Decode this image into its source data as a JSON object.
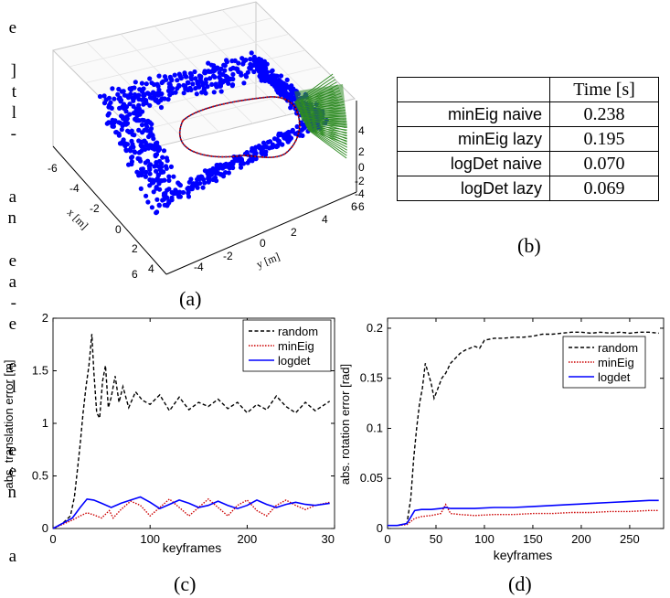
{
  "left_margin_fragments": [
    "e",
    "]",
    "t",
    "l",
    "-",
    "a",
    "n",
    "e",
    "a",
    "-",
    "e",
    "e",
    "l",
    "e",
    "e",
    "n",
    "a"
  ],
  "panel_a": {
    "caption": "(a)",
    "xlabel": "x [m]",
    "ylabel": "y [m]",
    "x_ticks": [
      "-6",
      "-4",
      "-2",
      "0",
      "2",
      "4",
      "6"
    ],
    "y_ticks": [
      "-4",
      "-2",
      "0",
      "2",
      "4",
      "6"
    ],
    "z_ticks": [
      "4",
      "2",
      "0",
      "-2",
      "-4",
      "-6"
    ],
    "colors": {
      "points": "#0000ff",
      "trajectory_a": "#cc0000",
      "trajectory_b": "#000066",
      "frustums": "#2e8b22"
    }
  },
  "panel_b": {
    "caption": "(b)",
    "header": [
      "",
      "Time [s]"
    ],
    "rows": [
      {
        "method": "minEig naive",
        "time": "0.238"
      },
      {
        "method": "minEig lazy",
        "time": "0.195"
      },
      {
        "method": "logDet naive",
        "time": "0.070"
      },
      {
        "method": "logDet lazy",
        "time": "0.069"
      }
    ]
  },
  "panel_c": {
    "caption": "(c)",
    "xlabel": "keyframes",
    "ylabel": "abs. translation error [m]",
    "x_ticks": [
      "0",
      "100",
      "200",
      "30"
    ],
    "y_ticks": [
      "0",
      "0.5",
      "1",
      "1.5",
      "2"
    ],
    "legend": [
      "random",
      "minEig",
      "logdet"
    ]
  },
  "panel_d": {
    "caption": "(d)",
    "xlabel": "keyframes",
    "ylabel": "abs. rotation error [rad]",
    "x_ticks": [
      "0",
      "50",
      "100",
      "150",
      "200",
      "250"
    ],
    "y_ticks": [
      "0",
      "0.05",
      "0.1",
      "0.15",
      "0.2"
    ],
    "legend": [
      "random",
      "minEig",
      "logdet"
    ]
  },
  "chart_data": [
    {
      "type": "line",
      "xlabel": "keyframes",
      "ylabel": "abs. translation error [m]",
      "xlim": [
        0,
        290
      ],
      "ylim": [
        0,
        2
      ],
      "grid": false,
      "legend_position": "top-right",
      "series": [
        {
          "name": "random",
          "style": "dashed",
          "color": "#000000",
          "x": [
            0,
            10,
            18,
            22,
            25,
            28,
            31,
            34,
            37,
            40,
            42,
            45,
            48,
            51,
            54,
            57,
            60,
            64,
            68,
            72,
            78,
            85,
            92,
            100,
            110,
            120,
            130,
            140,
            150,
            160,
            170,
            180,
            190,
            200,
            210,
            220,
            230,
            240,
            250,
            260,
            270,
            280,
            285
          ],
          "y": [
            0,
            0.05,
            0.12,
            0.3,
            0.55,
            0.8,
            1.1,
            1.35,
            1.55,
            1.85,
            1.5,
            1.1,
            1.05,
            1.4,
            1.55,
            1.15,
            1.25,
            1.45,
            1.2,
            1.35,
            1.15,
            1.3,
            1.22,
            1.18,
            1.27,
            1.12,
            1.25,
            1.13,
            1.2,
            1.16,
            1.23,
            1.14,
            1.2,
            1.1,
            1.18,
            1.13,
            1.26,
            1.16,
            1.1,
            1.2,
            1.12,
            1.18,
            1.21
          ]
        },
        {
          "name": "minEig",
          "style": "dotted",
          "color": "#cc0000",
          "x": [
            0,
            10,
            20,
            28,
            35,
            42,
            50,
            58,
            62,
            70,
            80,
            90,
            100,
            110,
            120,
            130,
            140,
            150,
            160,
            170,
            180,
            190,
            200,
            210,
            220,
            230,
            240,
            250,
            260,
            270,
            285
          ],
          "y": [
            0,
            0.04,
            0.08,
            0.12,
            0.15,
            0.13,
            0.1,
            0.17,
            0.1,
            0.18,
            0.26,
            0.22,
            0.12,
            0.2,
            0.28,
            0.2,
            0.12,
            0.2,
            0.28,
            0.2,
            0.12,
            0.22,
            0.27,
            0.17,
            0.12,
            0.22,
            0.27,
            0.22,
            0.18,
            0.22,
            0.25
          ]
        },
        {
          "name": "logdet",
          "style": "solid",
          "color": "#0000ff",
          "x": [
            0,
            10,
            20,
            28,
            35,
            42,
            50,
            60,
            70,
            80,
            90,
            100,
            110,
            120,
            130,
            140,
            150,
            160,
            170,
            180,
            190,
            200,
            210,
            220,
            230,
            240,
            250,
            260,
            270,
            285
          ],
          "y": [
            0,
            0.05,
            0.1,
            0.2,
            0.28,
            0.27,
            0.24,
            0.2,
            0.24,
            0.27,
            0.3,
            0.25,
            0.19,
            0.23,
            0.27,
            0.24,
            0.2,
            0.22,
            0.26,
            0.22,
            0.19,
            0.22,
            0.27,
            0.23,
            0.2,
            0.23,
            0.25,
            0.23,
            0.22,
            0.24
          ]
        }
      ]
    },
    {
      "type": "line",
      "xlabel": "keyframes",
      "ylabel": "abs. rotation error [rad]",
      "xlim": [
        0,
        285
      ],
      "ylim": [
        0,
        0.21
      ],
      "grid": false,
      "legend_position": "top-right",
      "series": [
        {
          "name": "random",
          "style": "dashed",
          "color": "#000000",
          "x": [
            0,
            10,
            20,
            24,
            27,
            30,
            33,
            36,
            39,
            42,
            45,
            48,
            52,
            56,
            60,
            65,
            70,
            75,
            80,
            85,
            90,
            95,
            100,
            110,
            120,
            130,
            140,
            150,
            160,
            170,
            180,
            190,
            200,
            210,
            220,
            230,
            240,
            250,
            260,
            270,
            280
          ],
          "y": [
            0.003,
            0.003,
            0.005,
            0.03,
            0.07,
            0.1,
            0.125,
            0.14,
            0.165,
            0.155,
            0.145,
            0.13,
            0.14,
            0.15,
            0.155,
            0.165,
            0.17,
            0.175,
            0.178,
            0.18,
            0.182,
            0.18,
            0.188,
            0.19,
            0.19,
            0.191,
            0.191,
            0.192,
            0.194,
            0.194,
            0.195,
            0.196,
            0.196,
            0.195,
            0.196,
            0.195,
            0.196,
            0.195,
            0.196,
            0.196,
            0.195
          ]
        },
        {
          "name": "minEig",
          "style": "dotted",
          "color": "#cc0000",
          "x": [
            0,
            10,
            20,
            28,
            35,
            45,
            55,
            60,
            65,
            75,
            90,
            110,
            130,
            150,
            170,
            190,
            210,
            230,
            250,
            270,
            280
          ],
          "y": [
            0.003,
            0.003,
            0.004,
            0.01,
            0.012,
            0.013,
            0.015,
            0.024,
            0.015,
            0.014,
            0.013,
            0.014,
            0.014,
            0.015,
            0.015,
            0.016,
            0.016,
            0.017,
            0.017,
            0.018,
            0.018
          ]
        },
        {
          "name": "logdet",
          "style": "solid",
          "color": "#0000ff",
          "x": [
            0,
            10,
            20,
            28,
            35,
            45,
            55,
            60,
            65,
            75,
            90,
            110,
            130,
            150,
            170,
            190,
            210,
            230,
            250,
            270,
            280
          ],
          "y": [
            0.003,
            0.003,
            0.005,
            0.018,
            0.019,
            0.019,
            0.02,
            0.021,
            0.02,
            0.02,
            0.02,
            0.021,
            0.021,
            0.022,
            0.023,
            0.024,
            0.025,
            0.026,
            0.027,
            0.028,
            0.028
          ]
        }
      ]
    }
  ]
}
